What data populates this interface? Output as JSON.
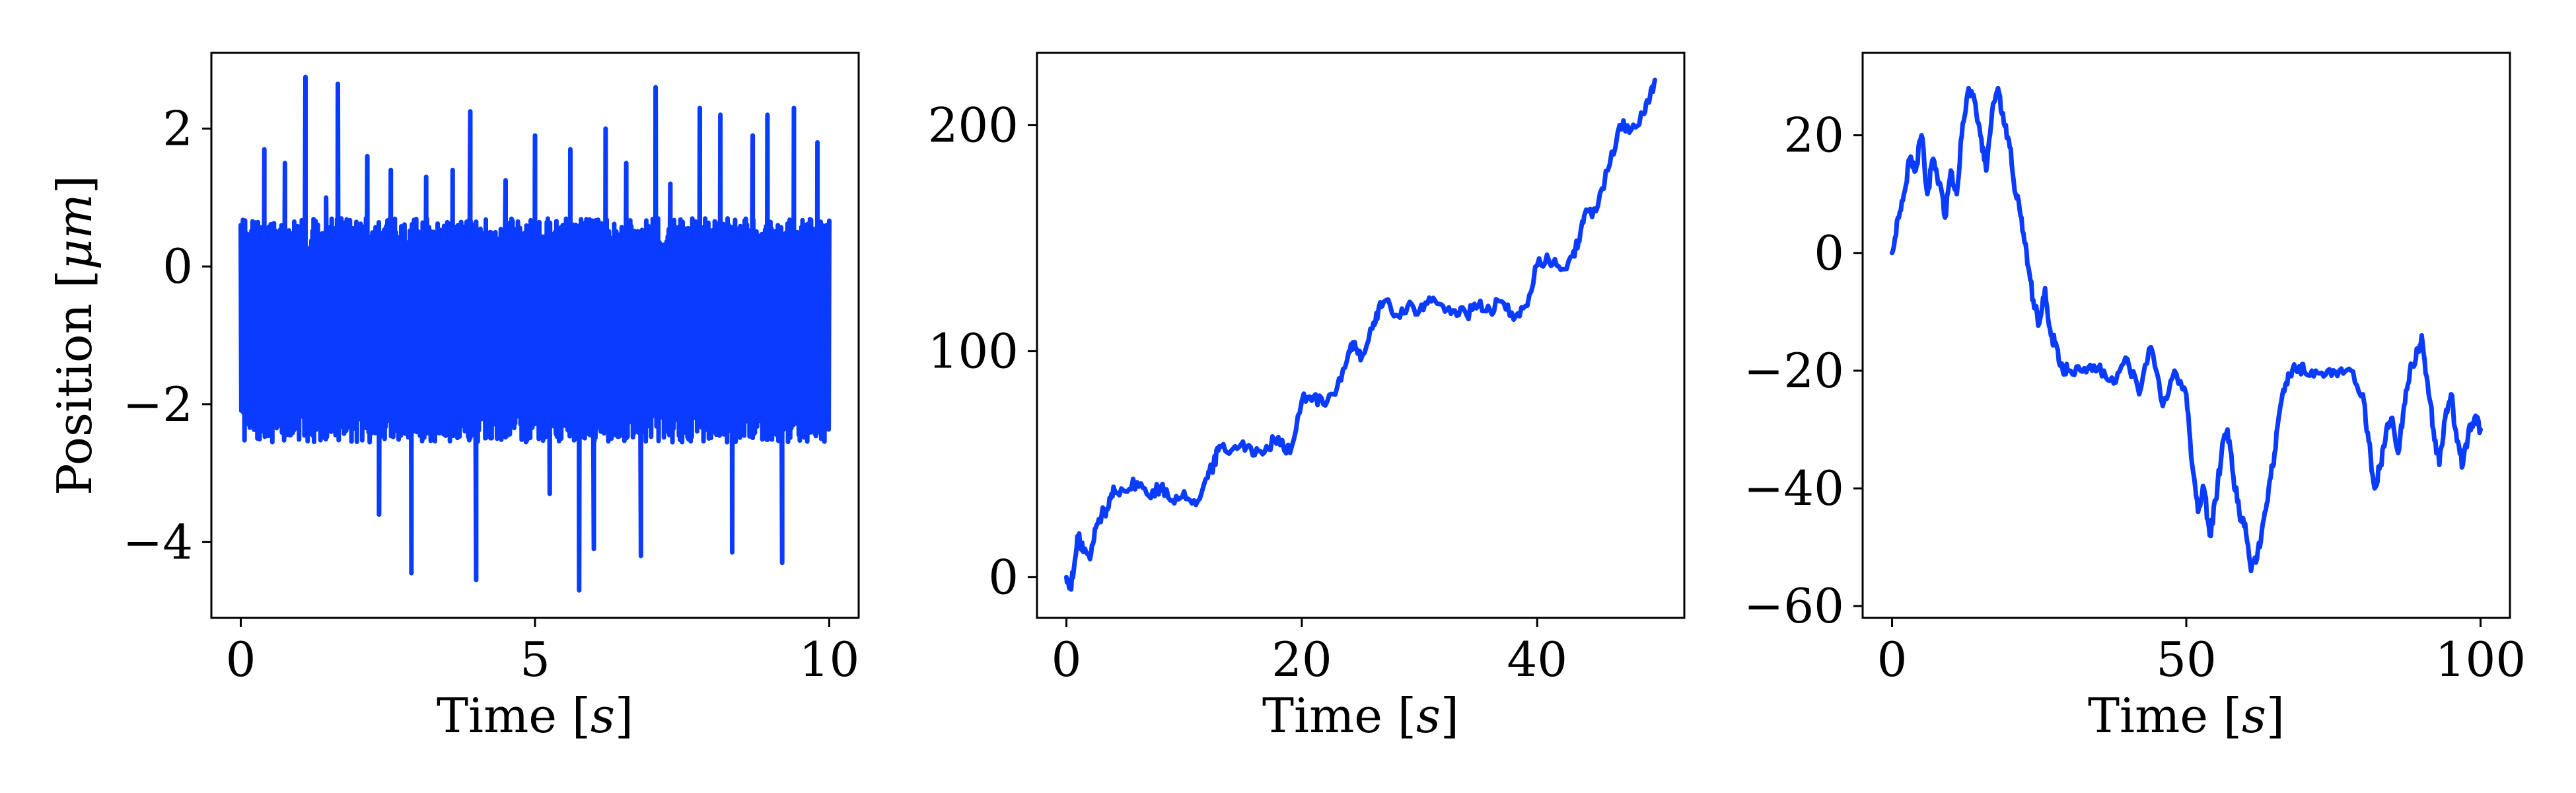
{
  "figure": {
    "colors": {
      "line": "#0a3cff",
      "axes": "#000000",
      "background": "#ffffff"
    }
  },
  "chart_data": [
    {
      "type": "line",
      "title": "",
      "xlabel": "Time [",
      "xlabel_math": "s",
      "xlabel_close": "]",
      "ylabel": "Position [",
      "ylabel_math": "μm",
      "ylabel_close": "]",
      "xlim": [
        -0.5,
        10.5
      ],
      "ylim": [
        -5.1,
        3.1
      ],
      "xticks": [
        0,
        5,
        10
      ],
      "xtick_labels": [
        "0",
        "5",
        "10"
      ],
      "yticks": [
        -4,
        -2,
        0,
        2
      ],
      "ytick_labels": [
        "−4",
        "−2",
        "0",
        "2"
      ],
      "grid": false,
      "series": [
        {
          "style": "dense-noise",
          "envelope_upper": 0.7,
          "envelope_lower": -2.55,
          "x": [
            0,
            0.4,
            0.75,
            1.1,
            1.45,
            1.65,
            2.15,
            2.35,
            2.55,
            2.9,
            3.15,
            3.6,
            3.9,
            4.0,
            4.5,
            5.0,
            5.25,
            5.6,
            5.75,
            6.0,
            6.2,
            6.55,
            6.8,
            7.05,
            7.3,
            7.8,
            8.15,
            8.35,
            8.7,
            8.95,
            9.2,
            9.4,
            9.6,
            9.8
          ],
          "y": [
            0.6,
            1.7,
            1.5,
            2.75,
            1.0,
            2.65,
            1.6,
            -3.6,
            1.4,
            -4.45,
            1.3,
            1.4,
            2.25,
            -4.55,
            1.25,
            1.9,
            -3.3,
            1.7,
            -4.7,
            -4.1,
            2.0,
            1.5,
            -4.2,
            2.6,
            1.2,
            2.3,
            2.2,
            -4.15,
            1.9,
            2.2,
            -4.3,
            2.3,
            -2.4,
            1.8
          ]
        }
      ]
    },
    {
      "type": "line",
      "title": "",
      "xlabel": "Time [",
      "xlabel_math": "s",
      "xlabel_close": "]",
      "ylabel": "",
      "xlim": [
        -2.5,
        52.5
      ],
      "ylim": [
        -18,
        232
      ],
      "xticks": [
        0,
        20,
        40
      ],
      "xtick_labels": [
        "0",
        "20",
        "40"
      ],
      "yticks": [
        0,
        100,
        200
      ],
      "ytick_labels": [
        "0",
        "100",
        "200"
      ],
      "grid": false,
      "series": [
        {
          "style": "random-walk",
          "x": [
            0,
            0.3,
            0.6,
            1.0,
            1.5,
            2.0,
            2.5,
            3.0,
            3.5,
            4.0,
            5.0,
            6.0,
            7.0,
            8.0,
            9.0,
            10.0,
            11.0,
            12.0,
            12.5,
            13.0,
            14.0,
            15.0,
            16.0,
            17.0,
            18.0,
            19.0,
            20.0,
            21.0,
            22.0,
            23.0,
            24.0,
            24.5,
            25.0,
            26.0,
            26.5,
            27.0,
            28.0,
            29.0,
            30.0,
            31.0,
            32.0,
            33.0,
            34.0,
            35.0,
            36.0,
            37.0,
            38.0,
            39.0,
            40.0,
            41.0,
            42.0,
            43.0,
            43.5,
            44.0,
            45.0,
            46.0,
            47.0,
            48.0,
            49.0,
            49.5,
            50.0
          ],
          "y": [
            0,
            -5,
            2,
            18,
            12,
            8,
            22,
            28,
            30,
            40,
            38,
            42,
            36,
            40,
            34,
            38,
            32,
            44,
            50,
            58,
            56,
            60,
            54,
            58,
            62,
            55,
            78,
            80,
            76,
            84,
            100,
            104,
            96,
            110,
            118,
            122,
            116,
            120,
            118,
            122,
            120,
            118,
            116,
            120,
            118,
            122,
            114,
            120,
            138,
            140,
            136,
            142,
            148,
            160,
            162,
            180,
            200,
            198,
            205,
            210,
            220
          ]
        }
      ]
    },
    {
      "type": "line",
      "title": "",
      "xlabel": "Time [",
      "xlabel_math": "s",
      "xlabel_close": "]",
      "ylabel": "",
      "xlim": [
        -5,
        105
      ],
      "ylim": [
        -62,
        34
      ],
      "xticks": [
        0,
        50,
        100
      ],
      "xtick_labels": [
        "0",
        "50",
        "100"
      ],
      "yticks": [
        -60,
        -40,
        -20,
        0,
        20
      ],
      "ytick_labels": [
        "−60",
        "−40",
        "−20",
        "0",
        "20"
      ],
      "grid": false,
      "series": [
        {
          "style": "random-walk",
          "x": [
            0,
            1,
            2,
            3,
            4,
            5,
            6,
            7,
            8,
            9,
            10,
            11,
            12,
            13,
            14,
            15,
            16,
            17,
            18,
            19,
            20,
            21,
            22,
            23,
            24,
            25,
            26,
            27,
            28,
            29,
            30,
            32,
            34,
            36,
            38,
            40,
            42,
            44,
            46,
            48,
            50,
            51,
            52,
            53,
            54,
            55,
            56,
            57,
            58,
            59,
            60,
            61,
            62,
            63,
            64,
            65,
            66,
            67,
            68,
            69,
            70,
            72,
            74,
            76,
            78,
            80,
            81,
            82,
            83,
            84,
            85,
            86,
            87,
            88,
            89,
            90,
            91,
            92,
            93,
            94,
            95,
            96,
            97,
            98,
            99,
            100
          ],
          "y": [
            0,
            6,
            10,
            16,
            14,
            20,
            10,
            16,
            12,
            6,
            14,
            10,
            22,
            28,
            26,
            20,
            14,
            24,
            28,
            22,
            18,
            10,
            6,
            -2,
            -8,
            -12,
            -6,
            -14,
            -16,
            -20,
            -20,
            -20,
            -20,
            -20,
            -22,
            -18,
            -24,
            -16,
            -26,
            -20,
            -24,
            -36,
            -44,
            -40,
            -48,
            -42,
            -34,
            -30,
            -38,
            -44,
            -46,
            -54,
            -52,
            -46,
            -40,
            -34,
            -26,
            -22,
            -20,
            -20,
            -20,
            -20,
            -20,
            -20,
            -20,
            -24,
            -32,
            -40,
            -36,
            -30,
            -28,
            -34,
            -26,
            -20,
            -18,
            -14,
            -22,
            -30,
            -36,
            -28,
            -24,
            -32,
            -36,
            -30,
            -28,
            -30
          ]
        }
      ]
    }
  ]
}
